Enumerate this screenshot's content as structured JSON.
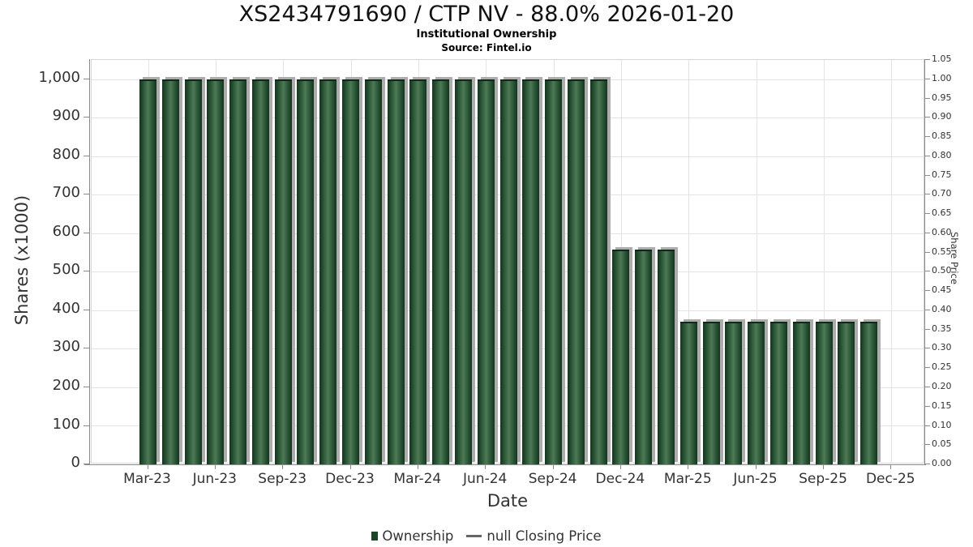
{
  "header": {
    "title": "XS2434791690 / CTP NV - 88.0% 2026-01-20",
    "subtitle": "Institutional Ownership",
    "source": "Source: Fintel.io"
  },
  "chart_data": {
    "type": "bar",
    "title": "XS2434791690 / CTP NV - 88.0% 2026-01-20",
    "subtitle": "Institutional Ownership",
    "source": "Source: Fintel.io",
    "xlabel": "Date",
    "ylabel_left": "Shares (x1000)",
    "ylabel_right": "Share Price",
    "categories": [
      "Mar-23",
      "Apr-23",
      "May-23",
      "Jun-23",
      "Jul-23",
      "Aug-23",
      "Sep-23",
      "Oct-23",
      "Nov-23",
      "Dec-23",
      "Jan-24",
      "Feb-24",
      "Mar-24",
      "Apr-24",
      "May-24",
      "Jun-24",
      "Jul-24",
      "Aug-24",
      "Sep-24",
      "Oct-24",
      "Nov-24",
      "Dec-24",
      "Jan-25",
      "Feb-25",
      "Mar-25",
      "Apr-25",
      "May-25",
      "Jun-25",
      "Jul-25",
      "Aug-25",
      "Sep-25",
      "Oct-25",
      "Nov-25"
    ],
    "series": [
      {
        "name": "Ownership",
        "values": [
          1000,
          1000,
          1000,
          1000,
          1000,
          1000,
          1000,
          1000,
          1000,
          1000,
          1000,
          1000,
          1000,
          1000,
          1000,
          1000,
          1000,
          1000,
          1000,
          1000,
          1000,
          557,
          557,
          557,
          370,
          370,
          370,
          370,
          370,
          370,
          370,
          370,
          370
        ]
      },
      {
        "name": "null Closing Price",
        "values": []
      }
    ],
    "x_ticks": [
      "Mar-23",
      "Jun-23",
      "Sep-23",
      "Dec-23",
      "Mar-24",
      "Jun-24",
      "Sep-24",
      "Dec-24",
      "Mar-25",
      "Jun-25",
      "Sep-25",
      "Dec-25"
    ],
    "left_axis": {
      "min": 0,
      "max": 1000,
      "step": 100,
      "tick_labels": [
        "0",
        "100",
        "200",
        "300",
        "400",
        "500",
        "600",
        "700",
        "800",
        "900",
        "1,000"
      ]
    },
    "right_axis": {
      "min": 0.0,
      "max": 1.05,
      "step": 0.05,
      "tick_labels": [
        "0.00",
        "0.05",
        "0.10",
        "0.15",
        "0.20",
        "0.25",
        "0.30",
        "0.35",
        "0.40",
        "0.45",
        "0.50",
        "0.55",
        "0.60",
        "0.65",
        "0.70",
        "0.75",
        "0.80",
        "0.85",
        "0.90",
        "0.95",
        "1.00",
        "1.05"
      ]
    },
    "x_axis": {
      "start_slot": 2,
      "total_slots": 37,
      "tick_every": 3
    },
    "grid": true,
    "legend_position": "bottom"
  },
  "legend": [
    {
      "label": "Ownership",
      "marker": "square",
      "color": "#1e4428"
    },
    {
      "label": "null Closing Price",
      "marker": "line",
      "color": "#666666"
    }
  ],
  "colors": {
    "bar_edge": "#17331f",
    "bar_mid": "#4d7a57",
    "bar_shadow": "#adadad",
    "grid": "#e4e4e4",
    "spine": "#8a8a8a",
    "tick_text": "#333333",
    "title_text": "#111111"
  }
}
